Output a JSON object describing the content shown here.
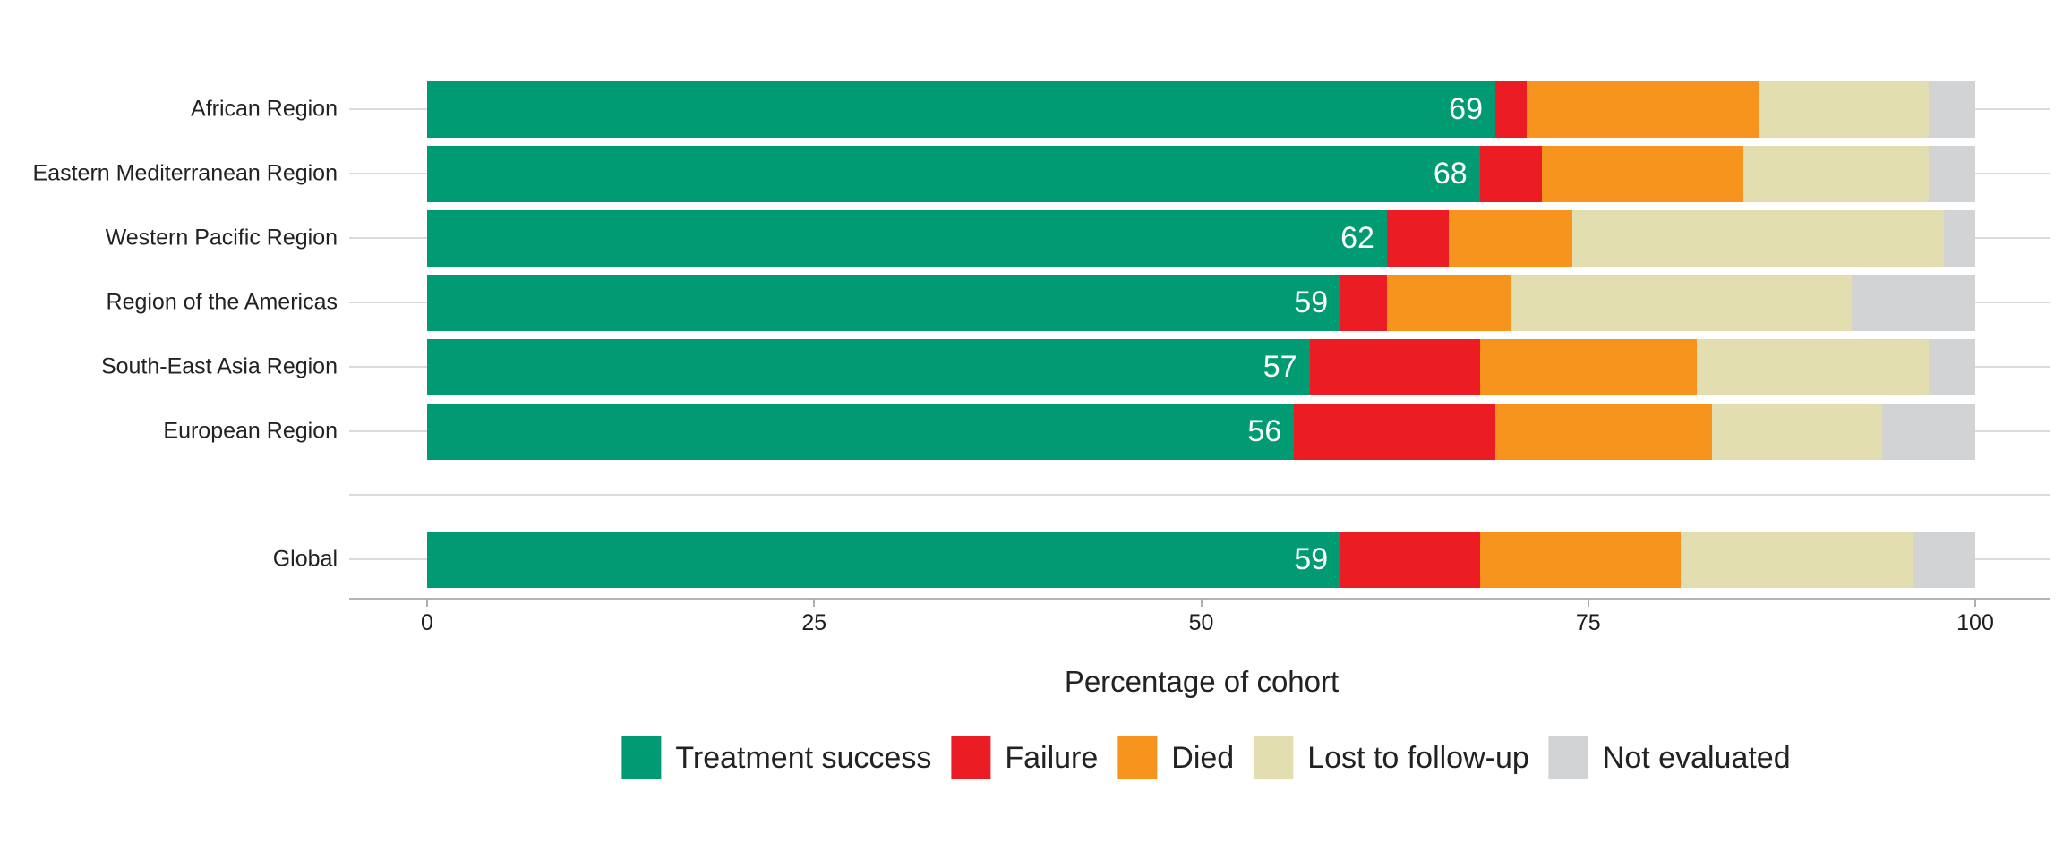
{
  "chart_data": {
    "type": "bar",
    "orientation": "horizontal",
    "stacked": true,
    "title": "",
    "xlabel": "Percentage of cohort",
    "ylabel": "",
    "xlim": [
      0,
      100
    ],
    "x_ticks": [
      0,
      25,
      50,
      75,
      100
    ],
    "x_tick_labels": [
      "0",
      "25",
      "50",
      "75",
      "100"
    ],
    "grid": "category gridlines only, light gray, drawn behind bars",
    "legend_position": "bottom",
    "categories": [
      "African Region",
      "Eastern Mediterranean Region",
      "Western Pacific Region",
      "Region of the Americas",
      "South-East Asia Region",
      "European Region",
      "Global"
    ],
    "global_row_separated": true,
    "series": [
      {
        "name": "Treatment success",
        "color": "#009B72",
        "values": [
          69,
          68,
          62,
          59,
          57,
          56,
          59
        ]
      },
      {
        "name": "Failure",
        "color": "#EC1C24",
        "values": [
          2,
          4,
          4,
          3,
          11,
          13,
          9
        ]
      },
      {
        "name": "Died",
        "color": "#F7941E",
        "values": [
          15,
          13,
          8,
          8,
          14,
          14,
          13
        ]
      },
      {
        "name": "Lost to follow-up",
        "color": "#E3DEB0",
        "values": [
          11,
          12,
          24,
          22,
          15,
          11,
          15
        ]
      },
      {
        "name": "Not evaluated",
        "color": "#D1D3D4",
        "values": [
          3,
          3,
          2,
          8,
          3,
          6,
          4
        ]
      }
    ],
    "bar_labels": [
      "69",
      "68",
      "62",
      "59",
      "57",
      "56",
      "59"
    ],
    "bar_label_color": "#ffffff",
    "colors": {
      "gridline": "#DBDBDB",
      "axis_line": "#B2B4B6",
      "text": "#222222"
    }
  }
}
